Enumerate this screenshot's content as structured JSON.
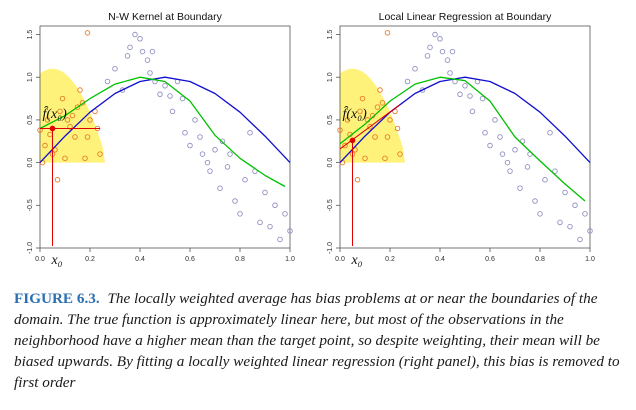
{
  "figure": {
    "panels": [
      {
        "title": "N-W Kernel at Boundary",
        "annotation": "f̂(x₀)",
        "target_label": "x₀",
        "fit_value_at_target": 0.4,
        "fit": {
          "name": "",
          "color": "#00c000",
          "points": [
            [
              0.0,
              0.4
            ],
            [
              0.1,
              0.55
            ],
            [
              0.2,
              0.75
            ],
            [
              0.3,
              0.92
            ],
            [
              0.4,
              1.0
            ],
            [
              0.5,
              0.95
            ],
            [
              0.6,
              0.72
            ],
            [
              0.7,
              0.32
            ],
            [
              0.8,
              0.05
            ],
            [
              0.9,
              -0.15
            ],
            [
              0.98,
              -0.28
            ]
          ]
        }
      },
      {
        "title": "Local Linear Regression at Boundary",
        "annotation": "f̂(x₀)",
        "target_label": "x₀",
        "fit_value_at_target": 0.26,
        "fit": {
          "name": "",
          "color": "#00c000",
          "points": [
            [
              0.0,
              0.22
            ],
            [
              0.1,
              0.45
            ],
            [
              0.2,
              0.72
            ],
            [
              0.3,
              0.92
            ],
            [
              0.4,
              1.0
            ],
            [
              0.5,
              0.96
            ],
            [
              0.6,
              0.72
            ],
            [
              0.7,
              0.3
            ],
            [
              0.8,
              0.02
            ],
            [
              0.9,
              -0.25
            ],
            [
              0.98,
              -0.45
            ]
          ]
        }
      }
    ],
    "yticks": [
      "-1.0",
      "-0.5",
      "0.0",
      "0.5",
      "1.0",
      "1.5"
    ],
    "xticks": [
      "0.0",
      "0.2",
      "0.4",
      "0.6",
      "0.8",
      "1.0"
    ],
    "colors": {
      "true_function": "#1010d0",
      "fit": "#00c000",
      "kernel": "#fff27a",
      "in_window": "#e87a28",
      "out_window": "#9090c0",
      "target": "#e00000"
    }
  },
  "chart_data": [
    {
      "type": "scatter",
      "title": "N-W Kernel at Boundary",
      "xlim": [
        0,
        1
      ],
      "ylim": [
        -1.0,
        1.6
      ],
      "x_target": 0.05,
      "curves": [
        {
          "name": "",
          "color": "#1010d0",
          "x": [
            0,
            0.1,
            0.2,
            0.3,
            0.4,
            0.5,
            0.6,
            0.7,
            0.8,
            0.9,
            1.0
          ],
          "y": [
            0.0,
            0.31,
            0.59,
            0.81,
            0.95,
            1.0,
            0.95,
            0.81,
            0.59,
            0.31,
            0.0
          ]
        },
        {
          "name": "",
          "color": "#00c000",
          "x": [
            0.0,
            0.1,
            0.2,
            0.3,
            0.4,
            0.5,
            0.6,
            0.7,
            0.8,
            0.9,
            0.98
          ],
          "y": [
            0.4,
            0.55,
            0.75,
            0.92,
            1.0,
            0.95,
            0.72,
            0.32,
            0.05,
            -0.15,
            -0.28
          ]
        }
      ],
      "in_window": [
        [
          0.0,
          0.38
        ],
        [
          0.01,
          0.0
        ],
        [
          0.02,
          0.2
        ],
        [
          0.03,
          0.5
        ],
        [
          0.04,
          0.33
        ],
        [
          0.05,
          0.1
        ],
        [
          0.06,
          0.15
        ],
        [
          0.07,
          -0.2
        ],
        [
          0.08,
          0.6
        ],
        [
          0.09,
          0.75
        ],
        [
          0.1,
          0.05
        ],
        [
          0.11,
          0.5
        ],
        [
          0.12,
          0.42
        ],
        [
          0.13,
          0.55
        ],
        [
          0.14,
          0.3
        ],
        [
          0.15,
          0.65
        ],
        [
          0.16,
          0.85
        ],
        [
          0.17,
          0.7
        ],
        [
          0.18,
          0.05
        ],
        [
          0.19,
          0.3
        ],
        [
          0.2,
          0.5
        ],
        [
          0.22,
          0.6
        ],
        [
          0.23,
          0.4
        ],
        [
          0.24,
          0.1
        ],
        [
          0.19,
          1.52
        ]
      ],
      "out_window": [
        [
          0.27,
          0.95
        ],
        [
          0.3,
          1.1
        ],
        [
          0.33,
          0.85
        ],
        [
          0.35,
          1.25
        ],
        [
          0.36,
          1.35
        ],
        [
          0.38,
          1.5
        ],
        [
          0.4,
          1.45
        ],
        [
          0.41,
          1.3
        ],
        [
          0.43,
          1.2
        ],
        [
          0.44,
          1.05
        ],
        [
          0.45,
          1.3
        ],
        [
          0.46,
          0.95
        ],
        [
          0.48,
          0.8
        ],
        [
          0.5,
          0.9
        ],
        [
          0.52,
          0.78
        ],
        [
          0.53,
          0.6
        ],
        [
          0.55,
          0.95
        ],
        [
          0.57,
          0.75
        ],
        [
          0.58,
          0.35
        ],
        [
          0.6,
          0.2
        ],
        [
          0.62,
          0.5
        ],
        [
          0.64,
          0.3
        ],
        [
          0.65,
          0.1
        ],
        [
          0.67,
          0.0
        ],
        [
          0.68,
          -0.1
        ],
        [
          0.7,
          0.15
        ],
        [
          0.72,
          -0.3
        ],
        [
          0.73,
          0.25
        ],
        [
          0.75,
          -0.05
        ],
        [
          0.76,
          0.1
        ],
        [
          0.78,
          -0.45
        ],
        [
          0.8,
          -0.6
        ],
        [
          0.82,
          -0.2
        ],
        [
          0.84,
          0.35
        ],
        [
          0.86,
          -0.1
        ],
        [
          0.88,
          -0.7
        ],
        [
          0.9,
          -0.35
        ],
        [
          0.92,
          -0.75
        ],
        [
          0.94,
          -0.5
        ],
        [
          0.96,
          -0.9
        ],
        [
          0.98,
          -0.6
        ],
        [
          1.0,
          -0.8
        ]
      ]
    },
    {
      "type": "scatter",
      "title": "Local Linear Regression at Boundary",
      "xlim": [
        0,
        1
      ],
      "ylim": [
        -1.0,
        1.6
      ],
      "x_target": 0.05,
      "curves": [
        {
          "name": "",
          "color": "#1010d0",
          "x": [
            0,
            0.1,
            0.2,
            0.3,
            0.4,
            0.5,
            0.6,
            0.7,
            0.8,
            0.9,
            1.0
          ],
          "y": [
            0.0,
            0.31,
            0.59,
            0.81,
            0.95,
            1.0,
            0.95,
            0.81,
            0.59,
            0.31,
            0.0
          ]
        },
        {
          "name": "",
          "color": "#00c000",
          "x": [
            0.0,
            0.1,
            0.2,
            0.3,
            0.4,
            0.5,
            0.6,
            0.7,
            0.8,
            0.9,
            0.98
          ],
          "y": [
            0.22,
            0.45,
            0.72,
            0.92,
            1.0,
            0.96,
            0.72,
            0.3,
            0.02,
            -0.25,
            -0.45
          ]
        }
      ],
      "in_window": [
        [
          0.0,
          0.38
        ],
        [
          0.01,
          0.0
        ],
        [
          0.02,
          0.2
        ],
        [
          0.03,
          0.5
        ],
        [
          0.04,
          0.33
        ],
        [
          0.05,
          0.1
        ],
        [
          0.06,
          0.15
        ],
        [
          0.07,
          -0.2
        ],
        [
          0.08,
          0.6
        ],
        [
          0.09,
          0.75
        ],
        [
          0.1,
          0.05
        ],
        [
          0.11,
          0.5
        ],
        [
          0.12,
          0.42
        ],
        [
          0.13,
          0.55
        ],
        [
          0.14,
          0.3
        ],
        [
          0.15,
          0.65
        ],
        [
          0.16,
          0.85
        ],
        [
          0.17,
          0.7
        ],
        [
          0.18,
          0.05
        ],
        [
          0.19,
          0.3
        ],
        [
          0.2,
          0.5
        ],
        [
          0.22,
          0.6
        ],
        [
          0.23,
          0.4
        ],
        [
          0.24,
          0.1
        ],
        [
          0.19,
          1.52
        ]
      ],
      "out_window": [
        [
          0.27,
          0.95
        ],
        [
          0.3,
          1.1
        ],
        [
          0.33,
          0.85
        ],
        [
          0.35,
          1.25
        ],
        [
          0.36,
          1.35
        ],
        [
          0.38,
          1.5
        ],
        [
          0.4,
          1.45
        ],
        [
          0.41,
          1.3
        ],
        [
          0.43,
          1.2
        ],
        [
          0.44,
          1.05
        ],
        [
          0.45,
          1.3
        ],
        [
          0.46,
          0.95
        ],
        [
          0.48,
          0.8
        ],
        [
          0.5,
          0.9
        ],
        [
          0.52,
          0.78
        ],
        [
          0.53,
          0.6
        ],
        [
          0.55,
          0.95
        ],
        [
          0.57,
          0.75
        ],
        [
          0.58,
          0.35
        ],
        [
          0.6,
          0.2
        ],
        [
          0.62,
          0.5
        ],
        [
          0.64,
          0.3
        ],
        [
          0.65,
          0.1
        ],
        [
          0.67,
          0.0
        ],
        [
          0.68,
          -0.1
        ],
        [
          0.7,
          0.15
        ],
        [
          0.72,
          -0.3
        ],
        [
          0.73,
          0.25
        ],
        [
          0.75,
          -0.05
        ],
        [
          0.76,
          0.1
        ],
        [
          0.78,
          -0.45
        ],
        [
          0.8,
          -0.6
        ],
        [
          0.82,
          -0.2
        ],
        [
          0.84,
          0.35
        ],
        [
          0.86,
          -0.1
        ],
        [
          0.88,
          -0.7
        ],
        [
          0.9,
          -0.35
        ],
        [
          0.92,
          -0.75
        ],
        [
          0.94,
          -0.5
        ],
        [
          0.96,
          -0.9
        ],
        [
          0.98,
          -0.6
        ],
        [
          1.0,
          -0.8
        ]
      ]
    }
  ],
  "caption": {
    "label": "FIGURE 6.3.",
    "text": "The locally weighted average has bias problems at or near the boundaries of the domain. The true function is approximately linear here, but most of the observations in the neighborhood have a higher mean than the target point, so despite weighting, their mean will be biased upwards. By fitting a locally weighted linear regression (right panel), this bias is removed to first order"
  }
}
